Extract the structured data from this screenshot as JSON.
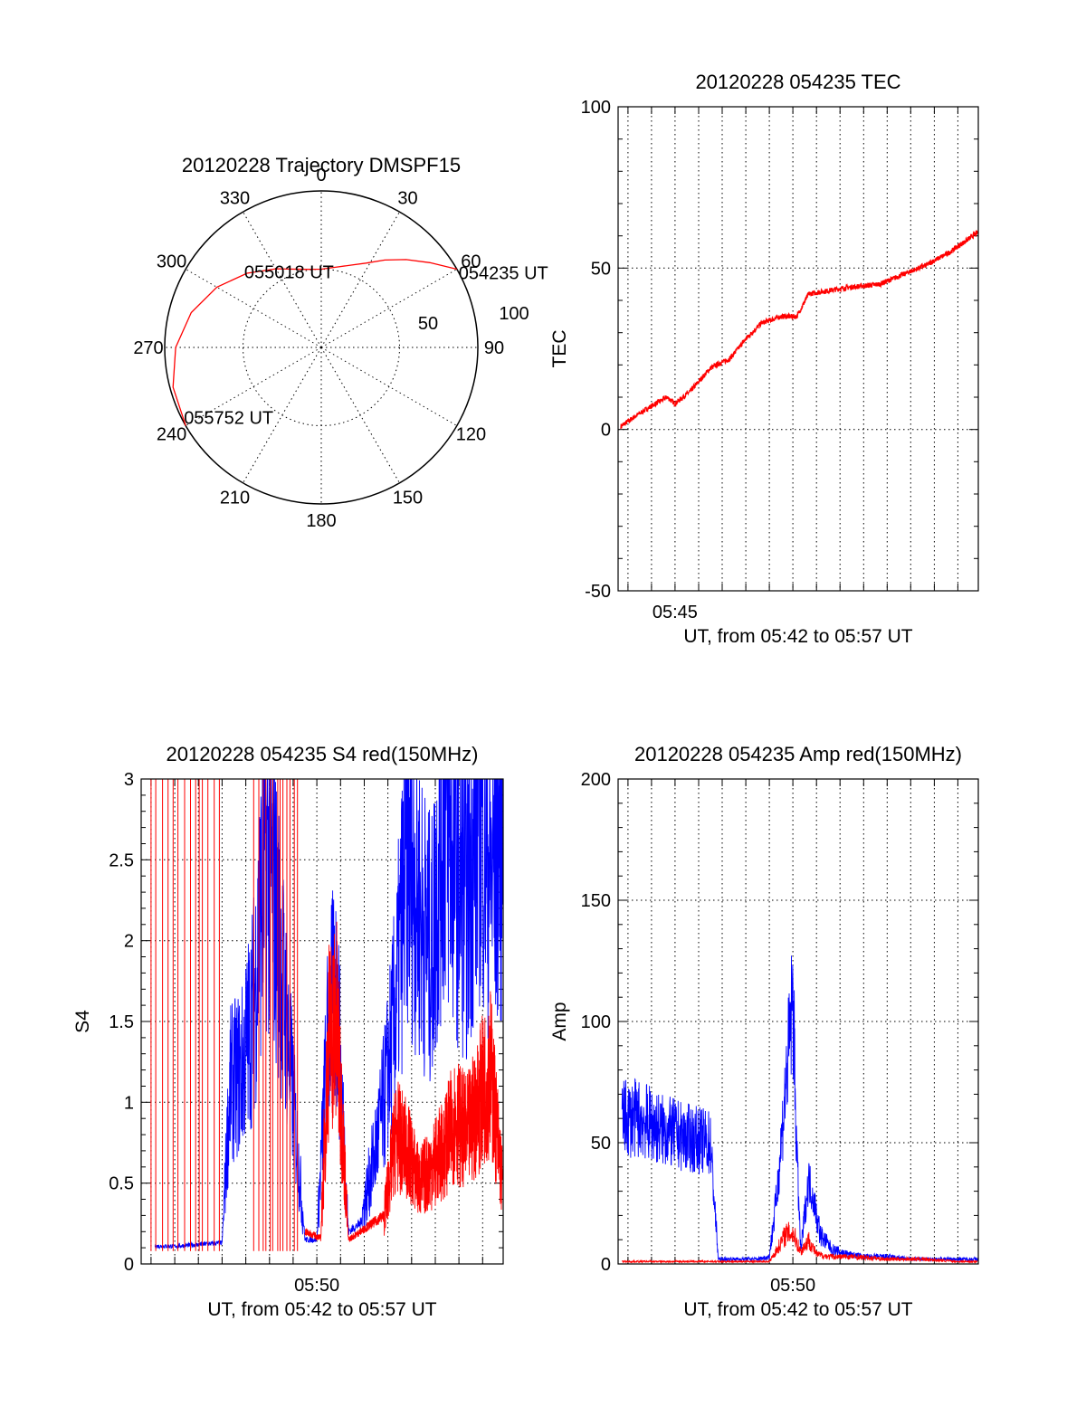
{
  "colors": {
    "red": "#ff0000",
    "blue": "#0000ff",
    "axis": "#000000",
    "background": "#ffffff"
  },
  "chart_data": [
    {
      "id": "trajectory",
      "type": "scatter",
      "projection": "polar",
      "title": "20120228 Trajectory DMSPF15",
      "azimuth_labels": [
        "0",
        "30",
        "60",
        "90",
        "120",
        "150",
        "180",
        "210",
        "240",
        "270",
        "300",
        "330"
      ],
      "radial_labels": [
        "50",
        "100"
      ],
      "grid": true,
      "series": [
        {
          "color": "#ff0000",
          "points": [
            {
              "azimuth": 60,
              "radius": 100
            },
            {
              "azimuth": 52,
              "radius": 88
            },
            {
              "azimuth": 44,
              "radius": 78
            },
            {
              "azimuth": 36,
              "radius": 69
            },
            {
              "azimuth": 28,
              "radius": 61
            },
            {
              "azimuth": 20,
              "radius": 56
            },
            {
              "azimuth": 10,
              "radius": 52
            },
            {
              "azimuth": 0,
              "radius": 50
            },
            {
              "azimuth": 348,
              "radius": 51
            },
            {
              "azimuth": 330,
              "radius": 58
            },
            {
              "azimuth": 315,
              "radius": 67
            },
            {
              "azimuth": 300,
              "radius": 77
            },
            {
              "azimuth": 285,
              "radius": 86
            },
            {
              "azimuth": 270,
              "radius": 93
            },
            {
              "azimuth": 255,
              "radius": 98
            },
            {
              "azimuth": 240,
              "radius": 100
            }
          ]
        }
      ],
      "annotations": [
        {
          "text": "054235 UT",
          "azimuth": 60,
          "radius": 100
        },
        {
          "text": "055018 UT",
          "azimuth": 340,
          "radius": 50
        },
        {
          "text": "055752 UT",
          "azimuth": 240,
          "radius": 100
        }
      ]
    },
    {
      "id": "tec",
      "type": "line",
      "title": "20120228 054235 TEC",
      "xlabel": "UT, from 05:42 to 05:57 UT",
      "ylabel": "TEC",
      "xlim": [
        "05:42:35",
        "05:57:52"
      ],
      "ylim": [
        -50,
        100
      ],
      "xticks": [
        "05:45"
      ],
      "yticks": [
        -50,
        0,
        50,
        100
      ],
      "grid": true,
      "series": [
        {
          "color": "#ff0000",
          "x": [
            "05:42:42",
            "05:43:30",
            "05:44:10",
            "05:44:40",
            "05:45:00",
            "05:45:40",
            "05:46:30",
            "05:47:20",
            "05:48:00",
            "05:48:40",
            "05:49:30",
            "05:50:10",
            "05:50:40",
            "05:51:30",
            "05:52:20",
            "05:53:40",
            "05:54:40",
            "05:55:40",
            "05:56:40",
            "05:57:50"
          ],
          "values": [
            1,
            5,
            8,
            10,
            8,
            12,
            19,
            22,
            28,
            33,
            35,
            35,
            42,
            43,
            44,
            45,
            48,
            51,
            55,
            61
          ]
        }
      ]
    },
    {
      "id": "s4",
      "type": "line",
      "title": "20120228 054235 S4 red(150MHz)",
      "xlabel": "UT, from 05:42 to 05:57 UT",
      "ylabel": "S4",
      "xlim": [
        "05:42:35",
        "05:57:52"
      ],
      "ylim": [
        0,
        3
      ],
      "xticks": [
        "05:50"
      ],
      "yticks": [
        0,
        0.5,
        1,
        1.5,
        2,
        2.5,
        3
      ],
      "grid": true,
      "series": [
        {
          "color": "#0000ff",
          "x": [
            "05:43:10",
            "05:44:00",
            "05:45:00",
            "05:46:00",
            "05:46:20",
            "05:46:50",
            "05:47:20",
            "05:47:50",
            "05:48:20",
            "05:48:50",
            "05:49:30",
            "05:50:00",
            "05:50:30",
            "05:50:50",
            "05:51:20",
            "05:51:50",
            "05:52:20",
            "05:52:50",
            "05:53:20",
            "05:53:50",
            "05:54:20",
            "05:54:50",
            "05:55:20",
            "05:55:50",
            "05:56:20",
            "05:56:50",
            "05:57:20",
            "05:57:50"
          ],
          "values": [
            0.11,
            0.11,
            0.12,
            0.13,
            1.1,
            1.2,
            1.6,
            2.6,
            2.1,
            1.3,
            0.15,
            0.15,
            1.5,
            1.7,
            0.2,
            0.25,
            0.6,
            1.0,
            1.6,
            2.6,
            2.2,
            1.9,
            2.8,
            2.5,
            2.2,
            2.9,
            2.4,
            2.7
          ]
        },
        {
          "color": "#ff0000",
          "x": [
            "05:49:30",
            "05:49:50",
            "05:50:10",
            "05:50:30",
            "05:50:50",
            "05:51:20",
            "05:51:50",
            "05:52:20",
            "05:52:50",
            "05:53:20",
            "05:53:50",
            "05:54:20",
            "05:54:50",
            "05:55:20",
            "05:55:50",
            "05:56:20",
            "05:56:50",
            "05:57:20",
            "05:57:50"
          ],
          "values": [
            0.2,
            0.18,
            0.16,
            1.4,
            1.5,
            0.15,
            0.2,
            0.25,
            0.3,
            0.8,
            0.7,
            0.5,
            0.6,
            0.7,
            0.9,
            0.8,
            1.0,
            1.2,
            0.5
          ]
        }
      ]
    },
    {
      "id": "amp",
      "type": "line",
      "title": "20120228 054235 Amp red(150MHz)",
      "xlabel": "UT, from 05:42 to 05:57 UT",
      "ylabel": "Amp",
      "xlim": [
        "05:42:35",
        "05:57:52"
      ],
      "ylim": [
        0,
        200
      ],
      "xticks": [
        "05:50"
      ],
      "yticks": [
        0,
        50,
        100,
        150,
        200
      ],
      "grid": true,
      "series": [
        {
          "color": "#0000ff",
          "x": [
            "05:42:45",
            "05:43:30",
            "05:44:30",
            "05:45:30",
            "05:46:30",
            "05:46:50",
            "05:47:30",
            "05:48:30",
            "05:49:00",
            "05:49:20",
            "05:49:40",
            "05:50:00",
            "05:50:10",
            "05:50:20",
            "05:50:40",
            "05:50:55",
            "05:51:10",
            "05:51:40",
            "05:52:20",
            "05:53:00",
            "05:54:00",
            "05:55:00",
            "05:56:00",
            "05:57:00",
            "05:57:50"
          ],
          "values": [
            60,
            60,
            55,
            52,
            50,
            2,
            2,
            2,
            3,
            30,
            70,
            110,
            45,
            5,
            35,
            25,
            12,
            6,
            4,
            3,
            3,
            2,
            2,
            2,
            2
          ]
        },
        {
          "color": "#ff0000",
          "x": [
            "05:42:45",
            "05:45:00",
            "05:47:00",
            "05:49:00",
            "05:49:20",
            "05:49:40",
            "05:50:00",
            "05:50:20",
            "05:50:40",
            "05:51:00",
            "05:51:30",
            "05:52:30",
            "05:54:00",
            "05:55:30",
            "05:57:00",
            "05:57:50"
          ],
          "values": [
            1,
            1,
            1,
            1,
            6,
            12,
            13,
            5,
            10,
            4,
            3,
            3,
            2,
            2,
            1,
            1
          ]
        }
      ]
    }
  ]
}
